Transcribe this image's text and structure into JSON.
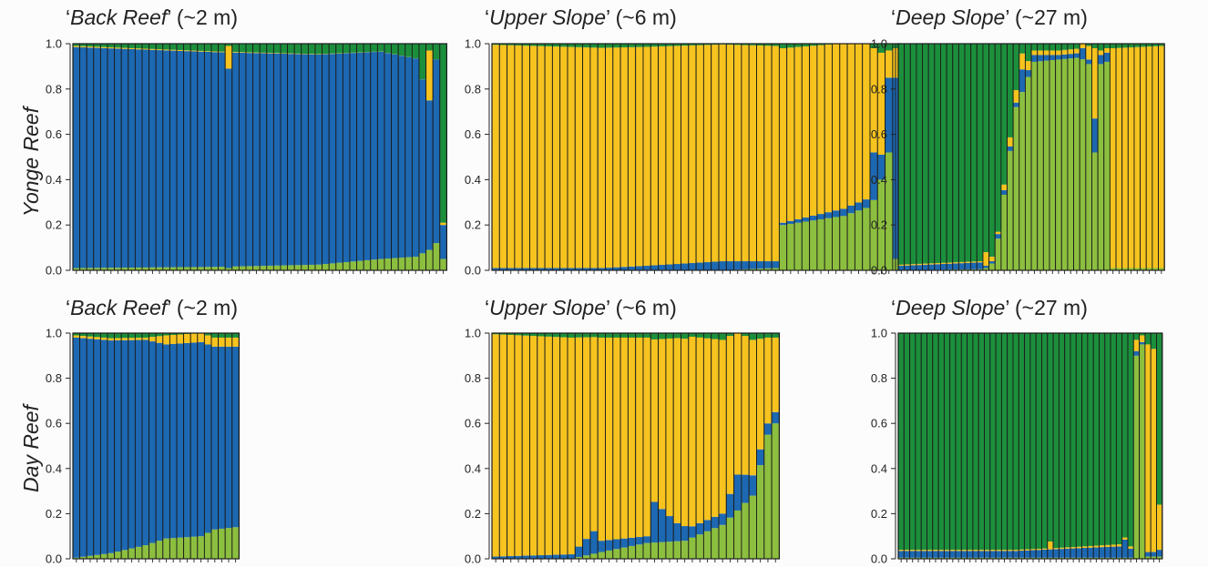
{
  "colors": {
    "green_dark": "#1c8f3c",
    "yellow": "#f6c31f",
    "blue": "#1d68b2",
    "green_light": "#8cbf3f",
    "outline": "#1a1a1a"
  },
  "chart_data": {
    "type": "bar",
    "stacked": true,
    "ylim": [
      0,
      1
    ],
    "yticks": [
      "0.0",
      "0.2",
      "0.4",
      "0.6",
      "0.8",
      "1.0"
    ],
    "rows": [
      {
        "label": "Yonge Reef",
        "panels": [
          {
            "q": "‘",
            "it": "Back Reef",
            "q2": "’",
            "tail": " (~2 m)",
            "n": 54,
            "green_light": [
              [
                0,
                0.01
              ],
              [
                20,
                0.015
              ],
              [
                35,
                0.025
              ],
              [
                44,
                0.05
              ],
              [
                49,
                0.06
              ],
              [
                51,
                0.09
              ],
              [
                52,
                0.12
              ],
              [
                53,
                0.05
              ]
            ],
            "blue": [
              [
                0,
                0.975
              ],
              [
                44,
                0.915
              ],
              [
                49,
                0.875
              ],
              [
                51,
                0.66
              ],
              [
                52,
                0.81
              ],
              [
                53,
                0.15
              ]
            ],
            "yellow": [
              [
                0,
                0.005
              ],
              [
                53,
                0
              ]
            ],
            "spikes": [
              {
                "i": 22,
                "green_light": 0.01,
                "blue": 0.88,
                "yellow": 0.1
              },
              {
                "i": 51,
                "green_light": 0.09,
                "blue": 0.66,
                "yellow": 0.22
              },
              {
                "i": 53,
                "green_light": 0.05,
                "blue": 0.15,
                "yellow": 0.01
              }
            ]
          },
          {
            "q": "‘",
            "it": "Upper Slope",
            "q2": "’",
            "tail": " (~6 m)",
            "n": 54,
            "green_light": [
              [
                0,
                0
              ],
              [
                30,
                0
              ],
              [
                37,
                0.01
              ],
              [
                38,
                0.2
              ],
              [
                46,
                0.24
              ],
              [
                50,
                0.31
              ],
              [
                51,
                0.4
              ],
              [
                52,
                0.52
              ],
              [
                53,
                0.05
              ]
            ],
            "blue": [
              [
                0,
                0.01
              ],
              [
                14,
                0.01
              ],
              [
                20,
                0.02
              ],
              [
                30,
                0.04
              ],
              [
                37,
                0.03
              ],
              [
                38,
                0.01
              ],
              [
                49,
                0.04
              ],
              [
                50,
                0.21
              ],
              [
                51,
                0.11
              ],
              [
                52,
                0.33
              ],
              [
                53,
                0.8
              ]
            ],
            "yellow": [
              [
                0,
                0.985
              ],
              [
                37,
                0.95
              ],
              [
                38,
                0.77
              ],
              [
                46,
                0.73
              ],
              [
                49,
                0.73
              ],
              [
                50,
                0.46
              ],
              [
                51,
                0.45
              ],
              [
                52,
                0.12
              ],
              [
                53,
                0.13
              ]
            ],
            "spikes": []
          },
          {
            "q": "‘",
            "it": "Deep Slope",
            "q2": "’",
            "tail": " (~27 m)",
            "n": 44,
            "green_light": [
              [
                0,
                0
              ],
              [
                13,
                0.005
              ],
              [
                14,
                0.01
              ],
              [
                15,
                0.03
              ],
              [
                16,
                0.14
              ],
              [
                19,
                0.72
              ],
              [
                22,
                0.92
              ],
              [
                26,
                0.93
              ],
              [
                30,
                0.94
              ],
              [
                31,
                0.91
              ],
              [
                32,
                0.52
              ],
              [
                33,
                0.91
              ],
              [
                34,
                0.92
              ],
              [
                35,
                0.01
              ],
              [
                43,
                0.01
              ]
            ],
            "blue": [
              [
                0,
                0.02
              ],
              [
                13,
                0.03
              ],
              [
                14,
                0.01
              ],
              [
                15,
                0.01
              ],
              [
                16,
                0.02
              ],
              [
                19,
                0.02
              ],
              [
                20,
                0.1
              ],
              [
                21,
                0.03
              ],
              [
                22,
                0.03
              ],
              [
                26,
                0.02
              ],
              [
                29,
                0.02
              ],
              [
                30,
                0.05
              ],
              [
                31,
                0.02
              ],
              [
                32,
                0.15
              ],
              [
                33,
                0.04
              ],
              [
                34,
                0.04
              ],
              [
                35,
                0
              ],
              [
                43,
                0
              ]
            ],
            "yellow": [
              [
                0,
                0.005
              ],
              [
                13,
                0.005
              ],
              [
                14,
                0.06
              ],
              [
                15,
                0.02
              ],
              [
                16,
                0.01
              ],
              [
                20,
                0.07
              ],
              [
                21,
                0.04
              ],
              [
                22,
                0.02
              ],
              [
                26,
                0.02
              ],
              [
                30,
                0.02
              ],
              [
                31,
                0.06
              ],
              [
                32,
                0.31
              ],
              [
                33,
                0.02
              ],
              [
                34,
                0.02
              ],
              [
                35,
                0.97
              ],
              [
                43,
                0.98
              ]
            ],
            "spikes": []
          }
        ]
      },
      {
        "label": "Day Reef",
        "panels": [
          {
            "q": "‘",
            "it": "Back Reef",
            "q2": "’",
            "tail": " (~2 m)",
            "n": 24,
            "green_light": [
              [
                0,
                0.005
              ],
              [
                5,
                0.025
              ],
              [
                10,
                0.06
              ],
              [
                13,
                0.09
              ],
              [
                18,
                0.1
              ],
              [
                20,
                0.13
              ],
              [
                23,
                0.14
              ]
            ],
            "blue": [
              [
                0,
                0.975
              ],
              [
                10,
                0.91
              ],
              [
                13,
                0.86
              ],
              [
                18,
                0.86
              ],
              [
                20,
                0.81
              ],
              [
                23,
                0.8
              ]
            ],
            "yellow": [
              [
                0,
                0.01
              ],
              [
                10,
                0.01
              ],
              [
                13,
                0.04
              ],
              [
                23,
                0.04
              ]
            ],
            "spikes": []
          },
          {
            "q": "‘",
            "it": "Upper Slope",
            "q2": "’",
            "tail": " (~6 m)",
            "n": 38,
            "green_light": [
              [
                0,
                0
              ],
              [
                10,
                0
              ],
              [
                14,
                0.03
              ],
              [
                20,
                0.07
              ],
              [
                25,
                0.08
              ],
              [
                30,
                0.15
              ],
              [
                34,
                0.28
              ],
              [
                36,
                0.55
              ],
              [
                37,
                0.6
              ]
            ],
            "blue": [
              [
                0,
                0.01
              ],
              [
                10,
                0.02
              ],
              [
                13,
                0.1
              ],
              [
                14,
                0.05
              ],
              [
                20,
                0.03
              ],
              [
                21,
                0.18
              ],
              [
                24,
                0.08
              ],
              [
                26,
                0.05
              ],
              [
                30,
                0.05
              ],
              [
                32,
                0.16
              ],
              [
                34,
                0.09
              ],
              [
                36,
                0.05
              ],
              [
                37,
                0.05
              ]
            ],
            "yellow": [
              [
                0,
                0.985
              ],
              [
                10,
                0.96
              ],
              [
                13,
                0.86
              ],
              [
                14,
                0.9
              ],
              [
                20,
                0.88
              ],
              [
                21,
                0.72
              ],
              [
                24,
                0.82
              ],
              [
                26,
                0.84
              ],
              [
                30,
                0.77
              ],
              [
                32,
                0.63
              ],
              [
                34,
                0.6
              ],
              [
                36,
                0.38
              ],
              [
                37,
                0.33
              ]
            ],
            "spikes": []
          },
          {
            "q": "‘",
            "it": "Deep Slope",
            "q2": "’",
            "tail": " (~27 m)",
            "n": 46,
            "green_light": [
              [
                0,
                0.005
              ],
              [
                40,
                0.005
              ],
              [
                41,
                0.9
              ],
              [
                42,
                0.95
              ],
              [
                43,
                0.01
              ],
              [
                45,
                0.01
              ]
            ],
            "blue": [
              [
                0,
                0.03
              ],
              [
                20,
                0.03
              ],
              [
                38,
                0.05
              ],
              [
                39,
                0.08
              ],
              [
                40,
                0.04
              ],
              [
                41,
                0.02
              ],
              [
                42,
                0.01
              ],
              [
                43,
                0.02
              ],
              [
                44,
                0.02
              ],
              [
                45,
                0.03
              ]
            ],
            "yellow": [
              [
                0,
                0.005
              ],
              [
                25,
                0.005
              ],
              [
                26,
                0.035
              ],
              [
                27,
                0.005
              ],
              [
                40,
                0.01
              ],
              [
                41,
                0.05
              ],
              [
                42,
                0.03
              ],
              [
                43,
                0.92
              ],
              [
                44,
                0.9
              ],
              [
                45,
                0.2
              ]
            ],
            "spikes": []
          }
        ]
      }
    ]
  }
}
